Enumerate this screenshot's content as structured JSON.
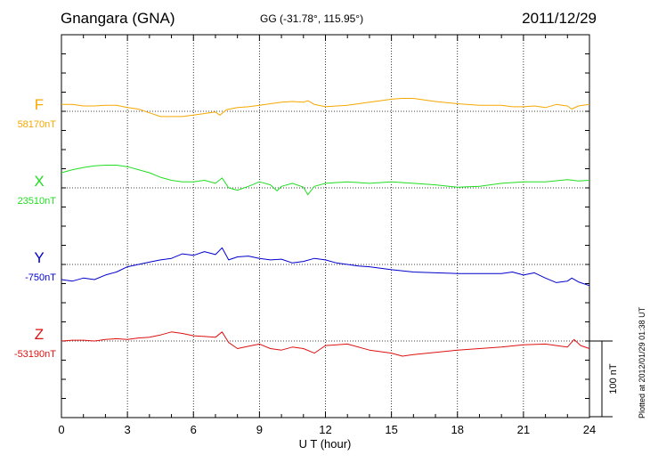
{
  "header": {
    "station": "Gnangara (GNA)",
    "coords": "GG (-31.78°, 115.95°)",
    "date": "2011/12/29"
  },
  "footer": {
    "plotted": "Plotted at 2012/01/29 01:38 UT"
  },
  "chart_data": {
    "type": "line",
    "xlabel": "U T (hour)",
    "xlim": [
      0,
      24
    ],
    "xticks": [
      "0",
      "3",
      "6",
      "9",
      "12",
      "15",
      "18",
      "21",
      "24"
    ],
    "scale_bar": "100 nT",
    "units": "nT",
    "series": [
      {
        "name": "F",
        "baseline": "58170nT",
        "baseline_nT": 58170,
        "color": "#f5a800",
        "x": [
          0,
          0.5,
          1,
          1.5,
          2,
          2.5,
          3,
          3.5,
          4,
          4.5,
          5,
          5.5,
          6,
          6.5,
          7,
          7.2,
          7.5,
          8,
          8.5,
          9,
          9.5,
          10,
          10.5,
          11,
          11.2,
          11.5,
          12,
          13,
          14,
          14.5,
          15,
          15.5,
          16,
          17,
          18,
          19,
          20,
          20.5,
          21,
          21.5,
          22,
          22.5,
          23,
          23.2,
          23.5,
          24
        ],
        "y": [
          9,
          9,
          7,
          7,
          8,
          8,
          5,
          3,
          -2,
          -7,
          -7,
          -7,
          -5,
          -3,
          -1,
          -5,
          2,
          5,
          6,
          8,
          10,
          12,
          13,
          12,
          14,
          9,
          6,
          8,
          12,
          14,
          16,
          17,
          17,
          13,
          10,
          8,
          8,
          6,
          6,
          7,
          5,
          9,
          7,
          3,
          7,
          9
        ]
      },
      {
        "name": "X",
        "baseline": "23510nT",
        "baseline_nT": 23510,
        "color": "#22dd22",
        "x": [
          0,
          0.5,
          1,
          1.5,
          2,
          2.5,
          3,
          3.5,
          4,
          4.5,
          5,
          5.5,
          6,
          6.5,
          7,
          7.3,
          7.6,
          8,
          8.5,
          9,
          9.5,
          9.8,
          10,
          10.5,
          11,
          11.2,
          11.5,
          12,
          13,
          14,
          15,
          16,
          17,
          18,
          19,
          20,
          21,
          22,
          23,
          23.5,
          24
        ],
        "y": [
          20,
          24,
          27,
          29,
          30,
          30,
          28,
          24,
          20,
          14,
          10,
          8,
          8,
          10,
          6,
          13,
          0,
          -3,
          2,
          8,
          4,
          -4,
          2,
          6,
          1,
          -9,
          2,
          6,
          8,
          6,
          8,
          6,
          4,
          1,
          2,
          6,
          8,
          8,
          11,
          9,
          10
        ]
      },
      {
        "name": "Y",
        "baseline": "-750nT",
        "baseline_nT": -750,
        "color": "#0000cc",
        "x": [
          0,
          0.5,
          1,
          1.5,
          2,
          2.5,
          3,
          3.5,
          4,
          4.5,
          5,
          5.5,
          6,
          6.5,
          7,
          7.3,
          7.6,
          8,
          8.5,
          9,
          9.5,
          10,
          10.5,
          11,
          11.5,
          12,
          12.5,
          13,
          13.5,
          14,
          14.5,
          15,
          16,
          17,
          18,
          19,
          20,
          20.5,
          21,
          21.5,
          22,
          22.5,
          23,
          23.2,
          23.5,
          24
        ],
        "y": [
          -20,
          -22,
          -18,
          -20,
          -14,
          -10,
          -3,
          0,
          3,
          6,
          8,
          14,
          12,
          17,
          13,
          22,
          6,
          10,
          11,
          8,
          6,
          7,
          2,
          4,
          8,
          6,
          2,
          0,
          -2,
          -3,
          -5,
          -7,
          -10,
          -11,
          -12,
          -12,
          -12,
          -10,
          -14,
          -11,
          -18,
          -24,
          -22,
          -18,
          -23,
          -28
        ]
      },
      {
        "name": "Z",
        "baseline": "-53190nT",
        "baseline_nT": -53190,
        "color": "#dd1111",
        "x": [
          0,
          0.5,
          1,
          1.5,
          2,
          2.5,
          3,
          3.5,
          4,
          4.5,
          5,
          5.5,
          6,
          6.5,
          7,
          7.3,
          7.6,
          8,
          8.5,
          9,
          9.5,
          10,
          10.5,
          11,
          11.5,
          12,
          13,
          14,
          15,
          15.5,
          16,
          17,
          18,
          19,
          20,
          21,
          22,
          22.5,
          23,
          23.3,
          23.6,
          24
        ],
        "y": [
          0,
          1,
          1,
          0,
          2,
          3,
          2,
          4,
          5,
          8,
          12,
          10,
          7,
          6,
          5,
          12,
          -2,
          -10,
          -7,
          -4,
          -10,
          -12,
          -8,
          -10,
          -16,
          -6,
          -4,
          -12,
          -16,
          -20,
          -18,
          -15,
          -12,
          -10,
          -8,
          -5,
          -4,
          -6,
          -8,
          2,
          -6,
          -10
        ]
      }
    ]
  }
}
